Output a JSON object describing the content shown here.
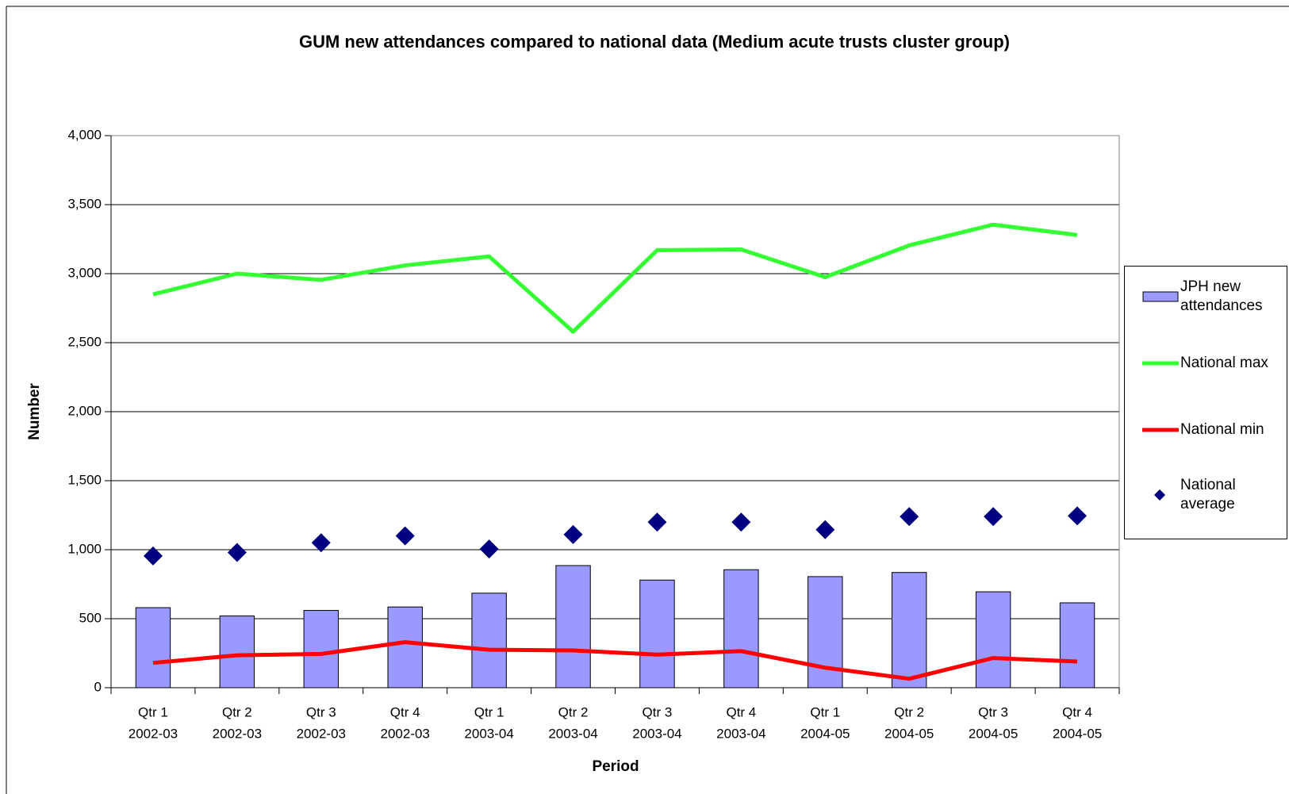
{
  "chart_data": {
    "type": "combo",
    "title": "GUM new attendances compared to national data (Medium acute trusts cluster group)",
    "x_label": "Period",
    "y_label": "Number",
    "categories": [
      [
        "Qtr 1",
        "2002-03"
      ],
      [
        "Qtr 2",
        "2002-03"
      ],
      [
        "Qtr 3",
        "2002-03"
      ],
      [
        "Qtr 4",
        "2002-03"
      ],
      [
        "Qtr 1",
        "2003-04"
      ],
      [
        "Qtr 2",
        "2003-04"
      ],
      [
        "Qtr 3",
        "2003-04"
      ],
      [
        "Qtr 4",
        "2003-04"
      ],
      [
        "Qtr 1",
        "2004-05"
      ],
      [
        "Qtr 2",
        "2004-05"
      ],
      [
        "Qtr 3",
        "2004-05"
      ],
      [
        "Qtr 4",
        "2004-05"
      ]
    ],
    "series": [
      {
        "name": "JPH new attendances",
        "type": "bar",
        "color": "#9999ff",
        "values": [
          580,
          520,
          560,
          585,
          685,
          885,
          780,
          855,
          805,
          835,
          695,
          615
        ]
      },
      {
        "name": "National max",
        "type": "line",
        "color": "#33ff33",
        "values": [
          2850,
          3000,
          2955,
          3060,
          3125,
          2580,
          3170,
          3175,
          2975,
          3205,
          3355,
          3280
        ]
      },
      {
        "name": "National min",
        "type": "line",
        "color": "#ff0000",
        "values": [
          180,
          235,
          245,
          330,
          275,
          270,
          240,
          265,
          145,
          65,
          215,
          190
        ]
      },
      {
        "name": "National average",
        "type": "scatter",
        "color": "#000080",
        "values": [
          955,
          980,
          1050,
          1100,
          1005,
          1110,
          1200,
          1200,
          1145,
          1240,
          1240,
          1245
        ]
      }
    ],
    "ylim": [
      0,
      4000
    ],
    "yticks": [
      0,
      500,
      {
        "value": 1000,
        "label": "1,000"
      },
      {
        "value": 1500,
        "label": "1,500"
      },
      {
        "value": 2000,
        "label": "2,000"
      },
      {
        "value": 2500,
        "label": "2,500"
      },
      {
        "value": 3000,
        "label": "3,000"
      },
      {
        "value": 3500,
        "label": "3,500"
      },
      {
        "value": 4000,
        "label": "4,000"
      }
    ],
    "grid": true,
    "legend": "right"
  }
}
